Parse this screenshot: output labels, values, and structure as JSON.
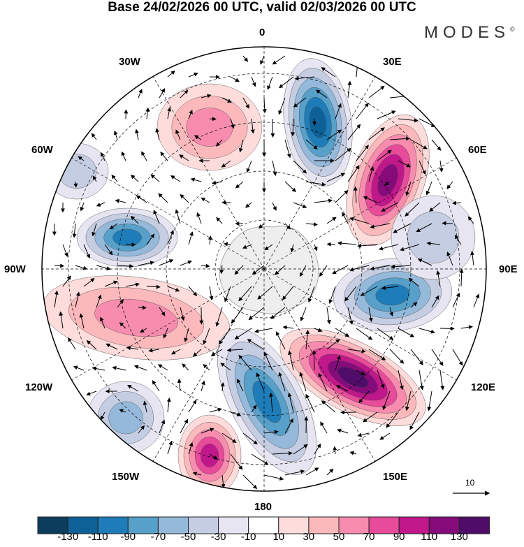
{
  "title": "Base 24/02/2026 00 UTC, valid 02/03/2026 00 UTC",
  "logo": "MODES",
  "logo_mark": "©",
  "longitude_labels": {
    "top": "0",
    "bottom": "180",
    "left": "90W",
    "right": "90E",
    "n30w": "30W",
    "n30e": "30E",
    "n60w": "60W",
    "n60e": "60E",
    "s120w": "120W",
    "s120e": "120E",
    "s150w": "150W",
    "s150e": "150E"
  },
  "reference_vector": {
    "label": "10"
  },
  "colorbar": {
    "colors": [
      "#0c3d5c",
      "#0e6196",
      "#1e7db8",
      "#57a0c9",
      "#95b9da",
      "#c4cde2",
      "#e7e5f1",
      "#ffffff",
      "#fddcdb",
      "#fbb9bc",
      "#f88cae",
      "#e74b9a",
      "#c0178a",
      "#850b7a",
      "#4f0c68"
    ],
    "tick_labels": [
      "-130",
      "-110",
      "-90",
      "-70",
      "-50",
      "-30",
      "-10",
      "10",
      "30",
      "50",
      "70",
      "90",
      "110",
      "130"
    ]
  }
}
